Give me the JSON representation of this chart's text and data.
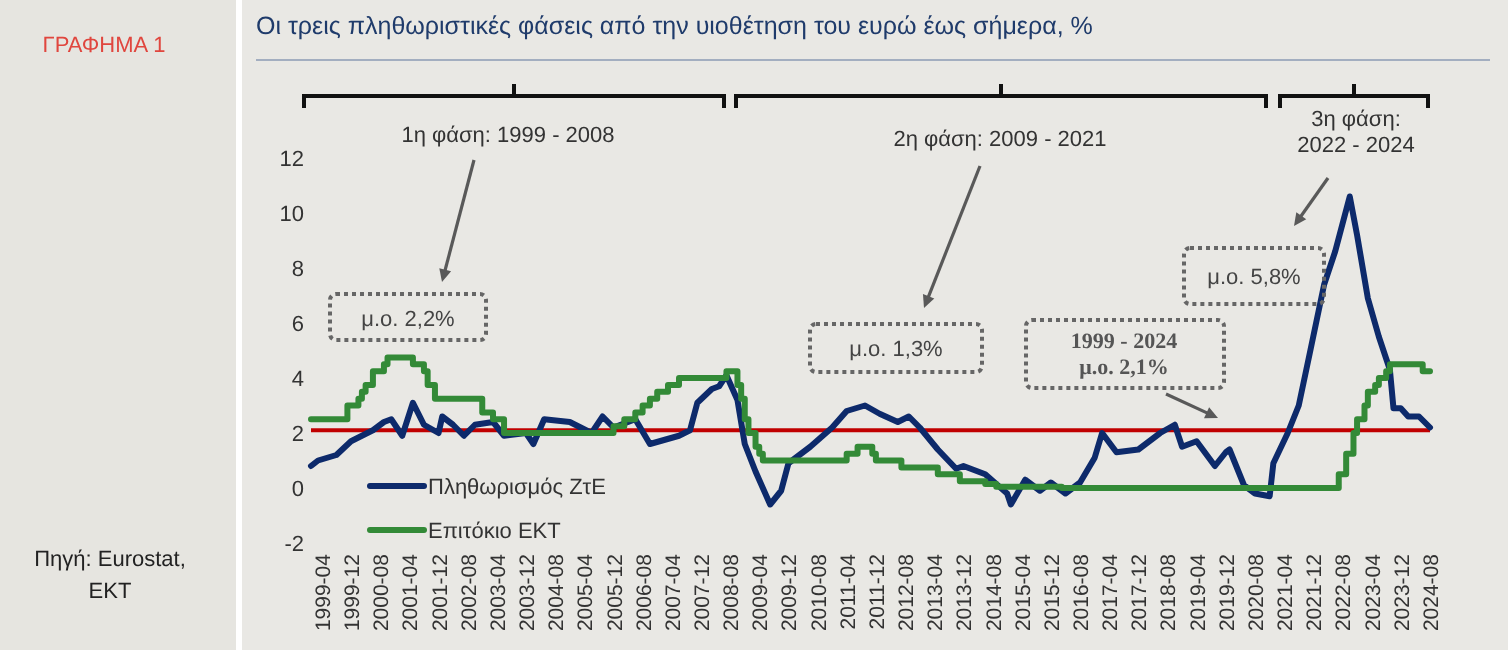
{
  "chart_data": {
    "type": "line",
    "title": "Οι τρεις πληθωριστικές φάσεις από την υιοθέτηση του ευρώ έως σήμερα, %",
    "annotations": [
      "ΓΡΑΦΗΜΑ 1",
      "Πηγή: Eurostat, ΕΚΤ",
      "1η φάση: 1999 - 2008",
      "2η φάση: 2009 - 2021",
      "3η φάση:\n2022 - 2024",
      "μ.ο. 2,2%",
      "μ.ο. 1,3%",
      "1999 - 2024\nμ.ο. 2,1%",
      "μ.ο. 5,8%"
    ],
    "xlim": [
      "1999-01",
      "2024-08"
    ],
    "xticks": [
      "1999-04",
      "1999-12",
      "2000-08",
      "2001-04",
      "2001-12",
      "2002-08",
      "2003-04",
      "2003-12",
      "2004-08",
      "2005-04",
      "2005-12",
      "2006-08",
      "2007-04",
      "2007-12",
      "2008-08",
      "2009-04",
      "2009-12",
      "2010-08",
      "2011-04",
      "2011-12",
      "2012-08",
      "2013-04",
      "2013-12",
      "2014-08",
      "2015-04",
      "2015-12",
      "2016-08",
      "2017-04",
      "2017-12",
      "2018-08",
      "2019-04",
      "2019-12",
      "2020-08",
      "2021-04",
      "2021-12",
      "2022-08",
      "2023-04",
      "2023-12",
      "2024-08"
    ],
    "ylim": [
      -2,
      12
    ],
    "yticks": [
      -2,
      0,
      2,
      4,
      6,
      8,
      10,
      12
    ],
    "legend": "bottom left",
    "grid": false,
    "ref_lines": [
      {
        "axis": "y",
        "value": 2.1,
        "color": "#c00000"
      }
    ],
    "series": [
      {
        "name": "Πληθωρισμός ΖτΕ",
        "color": "#0d2a6b",
        "x": [
          "1999-01",
          "1999-03",
          "1999-08",
          "1999-12",
          "2000-03",
          "2000-06",
          "2000-09",
          "2000-11",
          "2001-02",
          "2001-05",
          "2001-08",
          "2001-12",
          "2002-01",
          "2002-04",
          "2002-07",
          "2002-10",
          "2003-03",
          "2003-06",
          "2003-12",
          "2004-02",
          "2004-05",
          "2004-12",
          "2005-06",
          "2005-09",
          "2005-12",
          "2006-06",
          "2006-10",
          "2007-06",
          "2007-09",
          "2007-11",
          "2008-03",
          "2008-05",
          "2008-07",
          "2008-10",
          "2008-12",
          "2009-03",
          "2009-07",
          "2009-10",
          "2009-12",
          "2010-06",
          "2010-12",
          "2011-04",
          "2011-09",
          "2012-01",
          "2012-06",
          "2012-09",
          "2012-12",
          "2013-05",
          "2013-10",
          "2013-12",
          "2014-06",
          "2014-12",
          "2015-01",
          "2015-05",
          "2015-09",
          "2015-12",
          "2016-04",
          "2016-08",
          "2016-12",
          "2017-02",
          "2017-06",
          "2017-12",
          "2018-06",
          "2018-10",
          "2018-12",
          "2019-04",
          "2019-09",
          "2019-12",
          "2020-01",
          "2020-05",
          "2020-08",
          "2020-12",
          "2021-01",
          "2021-05",
          "2021-08",
          "2021-11",
          "2022-03",
          "2022-06",
          "2022-10",
          "2022-12",
          "2023-03",
          "2023-06",
          "2023-09",
          "2023-10",
          "2023-12",
          "2024-02",
          "2024-05",
          "2024-08"
        ],
        "values": [
          0.8,
          1.0,
          1.2,
          1.7,
          1.9,
          2.1,
          2.4,
          2.5,
          1.9,
          3.1,
          2.3,
          2.0,
          2.6,
          2.3,
          1.9,
          2.3,
          2.4,
          1.9,
          2.0,
          1.6,
          2.5,
          2.4,
          2.0,
          2.6,
          2.2,
          2.5,
          1.6,
          1.9,
          2.1,
          3.1,
          3.6,
          3.7,
          4.1,
          3.2,
          1.6,
          0.6,
          -0.6,
          -0.1,
          0.9,
          1.5,
          2.2,
          2.8,
          3.0,
          2.7,
          2.4,
          2.6,
          2.2,
          1.4,
          0.7,
          0.8,
          0.5,
          -0.2,
          -0.6,
          0.3,
          -0.1,
          0.2,
          -0.2,
          0.2,
          1.1,
          2.0,
          1.3,
          1.4,
          2.0,
          2.3,
          1.5,
          1.7,
          0.8,
          1.3,
          1.4,
          0.1,
          -0.2,
          -0.3,
          0.9,
          2.0,
          3.0,
          4.9,
          7.4,
          8.6,
          10.6,
          9.2,
          6.9,
          5.5,
          4.3,
          2.9,
          2.9,
          2.6,
          2.6,
          2.2
        ]
      },
      {
        "name": "Επιτόκιο ΕΚΤ",
        "color": "#338a37",
        "type": "step",
        "x": [
          "1999-01",
          "1999-11",
          "2000-02",
          "2000-03",
          "2000-04",
          "2000-06",
          "2000-09",
          "2000-10",
          "2001-05",
          "2001-08",
          "2001-09",
          "2001-11",
          "2002-12",
          "2003-03",
          "2003-06",
          "2005-12",
          "2006-03",
          "2006-06",
          "2006-08",
          "2006-10",
          "2006-12",
          "2007-03",
          "2007-06",
          "2008-07",
          "2008-10",
          "2008-11",
          "2008-12",
          "2009-01",
          "2009-03",
          "2009-04",
          "2009-05",
          "2011-04",
          "2011-07",
          "2011-11",
          "2011-12",
          "2012-07",
          "2013-05",
          "2013-11",
          "2014-06",
          "2014-09",
          "2016-03",
          "2022-07",
          "2022-09",
          "2022-11",
          "2022-12",
          "2023-02",
          "2023-03",
          "2023-05",
          "2023-06",
          "2023-08",
          "2023-09",
          "2024-06",
          "2024-08"
        ],
        "values": [
          2.5,
          3.0,
          3.25,
          3.5,
          3.75,
          4.25,
          4.5,
          4.75,
          4.5,
          4.25,
          3.75,
          3.25,
          2.75,
          2.5,
          2.0,
          2.25,
          2.5,
          2.75,
          3.0,
          3.25,
          3.5,
          3.75,
          4.0,
          4.25,
          3.75,
          3.25,
          2.5,
          2.0,
          1.5,
          1.25,
          1.0,
          1.25,
          1.5,
          1.25,
          1.0,
          0.75,
          0.5,
          0.25,
          0.15,
          0.05,
          0.0,
          0.5,
          1.25,
          2.0,
          2.5,
          3.0,
          3.5,
          3.75,
          4.0,
          4.25,
          4.5,
          4.25,
          4.25
        ]
      }
    ]
  }
}
